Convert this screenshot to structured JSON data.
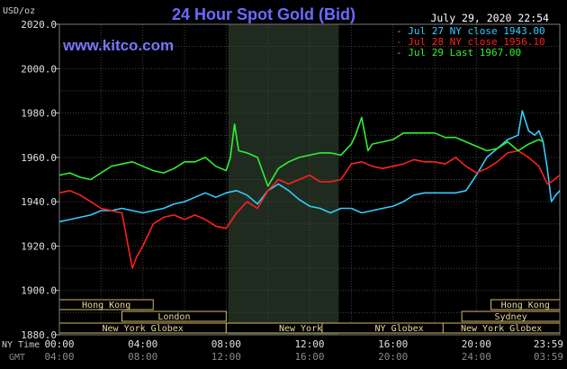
{
  "chart_data": {
    "type": "line",
    "title": "24 Hour Spot Gold (Bid)",
    "website": "www.kitco.com",
    "date_label": "July 29, 2020 22:54",
    "y_unit": "USD/oz",
    "ylim": [
      1880,
      2020
    ],
    "y_ticks": [
      "2020.0",
      "2000.0",
      "1980.0",
      "1960.0",
      "1940.0",
      "1920.0",
      "1900.0",
      "1880.0"
    ],
    "x_range_hours": [
      0,
      24
    ],
    "x_ticks_ny": [
      "00:00",
      "04:00",
      "08:00",
      "12:00",
      "16:00",
      "20:00",
      "23:59"
    ],
    "x_ticks_gmt": [
      "04:00",
      "08:00",
      "12:00",
      "16:00",
      "20:00",
      "24:00",
      "03:59"
    ],
    "x_row_labels": {
      "ny": "NY Time",
      "gmt": "GMT"
    },
    "grid": true,
    "shaded_region_hours": [
      8.1,
      13.4
    ],
    "series": [
      {
        "name": "Jul 27 NY close 1943.00",
        "color": "#33CCFF",
        "x": [
          0,
          0.5,
          1,
          1.5,
          2,
          2.5,
          3,
          3.5,
          4,
          4.5,
          5,
          5.5,
          6,
          6.5,
          7,
          7.5,
          8,
          8.5,
          9,
          9.5,
          10,
          10.5,
          11,
          11.5,
          12,
          12.5,
          13,
          13.5,
          14,
          14.5,
          15,
          15.5,
          16,
          16.5,
          17,
          17.5,
          18,
          18.5,
          19,
          19.5,
          20,
          20.5,
          21,
          21.5,
          22,
          22.2,
          22.5,
          22.8,
          23,
          23.2,
          23.4,
          23.6,
          23.8,
          24
        ],
        "y": [
          1931,
          1932,
          1933,
          1934,
          1936,
          1936,
          1937,
          1936,
          1935,
          1936,
          1937,
          1939,
          1940,
          1942,
          1944,
          1942,
          1944,
          1945,
          1943,
          1939,
          1945,
          1948,
          1945,
          1941,
          1938,
          1937,
          1935,
          1937,
          1937,
          1935,
          1936,
          1937,
          1938,
          1940,
          1943,
          1944,
          1944,
          1944,
          1944,
          1945,
          1952,
          1960,
          1964,
          1968,
          1970,
          1981,
          1972,
          1970,
          1972,
          1967,
          1955,
          1940,
          1943,
          1945
        ]
      },
      {
        "name": "Jul 28 NY close 1956.10",
        "color": "#FF2020",
        "x": [
          0,
          0.5,
          1,
          1.5,
          2,
          2.5,
          3,
          3.2,
          3.5,
          3.7,
          4,
          4.5,
          5,
          5.5,
          6,
          6.5,
          7,
          7.5,
          8,
          8.5,
          9,
          9.5,
          10,
          10.5,
          11,
          11.5,
          12,
          12.5,
          13,
          13.5,
          14,
          14.5,
          15,
          15.5,
          16,
          16.5,
          17,
          17.5,
          18,
          18.5,
          19,
          19.5,
          20,
          20.5,
          21,
          21.5,
          22,
          22.5,
          23,
          23.4,
          23.6,
          24
        ],
        "y": [
          1944,
          1945,
          1943,
          1940,
          1937,
          1936,
          1935,
          1925,
          1910,
          1915,
          1920,
          1930,
          1933,
          1934,
          1932,
          1934,
          1932,
          1929,
          1928,
          1935,
          1940,
          1937,
          1945,
          1950,
          1948,
          1950,
          1952,
          1949,
          1949,
          1950,
          1957,
          1958,
          1956,
          1955,
          1956,
          1957,
          1959,
          1958,
          1958,
          1957,
          1960,
          1956,
          1953,
          1955,
          1958,
          1962,
          1963,
          1960,
          1956,
          1948,
          1949,
          1952
        ]
      },
      {
        "name": "Jul 29 Last 1967.00",
        "color": "#33EE33",
        "x": [
          0,
          0.5,
          1,
          1.5,
          2,
          2.5,
          3,
          3.5,
          4,
          4.5,
          5,
          5.5,
          6,
          6.5,
          7,
          7.5,
          8,
          8.2,
          8.4,
          8.6,
          9,
          9.5,
          10,
          10.5,
          11,
          11.5,
          12,
          12.5,
          13,
          13.5,
          14,
          14.2,
          14.5,
          14.8,
          15,
          15.5,
          16,
          16.5,
          17,
          17.5,
          18,
          18.5,
          19,
          19.5,
          20,
          20.5,
          21,
          21.5,
          22,
          22.5,
          23,
          23.2
        ],
        "y": [
          1952,
          1953,
          1951,
          1950,
          1953,
          1956,
          1957,
          1958,
          1956,
          1954,
          1953,
          1955,
          1958,
          1958,
          1960,
          1956,
          1954,
          1960,
          1975,
          1963,
          1962,
          1960,
          1947,
          1955,
          1958,
          1960,
          1961,
          1962,
          1962,
          1961,
          1966,
          1970,
          1978,
          1963,
          1966,
          1967,
          1968,
          1971,
          1971,
          1971,
          1971,
          1969,
          1969,
          1967,
          1965,
          1963,
          1964,
          1967,
          1963,
          1966,
          1968,
          1967
        ]
      }
    ],
    "market_sessions": [
      {
        "label": "Hong Kong",
        "start": 0,
        "end": 4.5,
        "row": 0
      },
      {
        "label": "London",
        "start": 3,
        "end": 8,
        "row": 2
      },
      {
        "label": "New York Globex",
        "start": 0,
        "end": 8,
        "row": 3
      },
      {
        "label": "New York NYMEX",
        "start": 8,
        "end": 16.7,
        "row": 3
      },
      {
        "label": "NY Globex",
        "start": 12.6,
        "end": 20,
        "row": 3
      },
      {
        "label": "Hong Kong",
        "start": 20.7,
        "end": 24,
        "row": 0
      },
      {
        "label": "Sydney",
        "start": 19.3,
        "end": 24,
        "row": 1
      },
      {
        "label": "New York Globex",
        "start": 18.4,
        "end": 24,
        "row": 3
      }
    ]
  }
}
